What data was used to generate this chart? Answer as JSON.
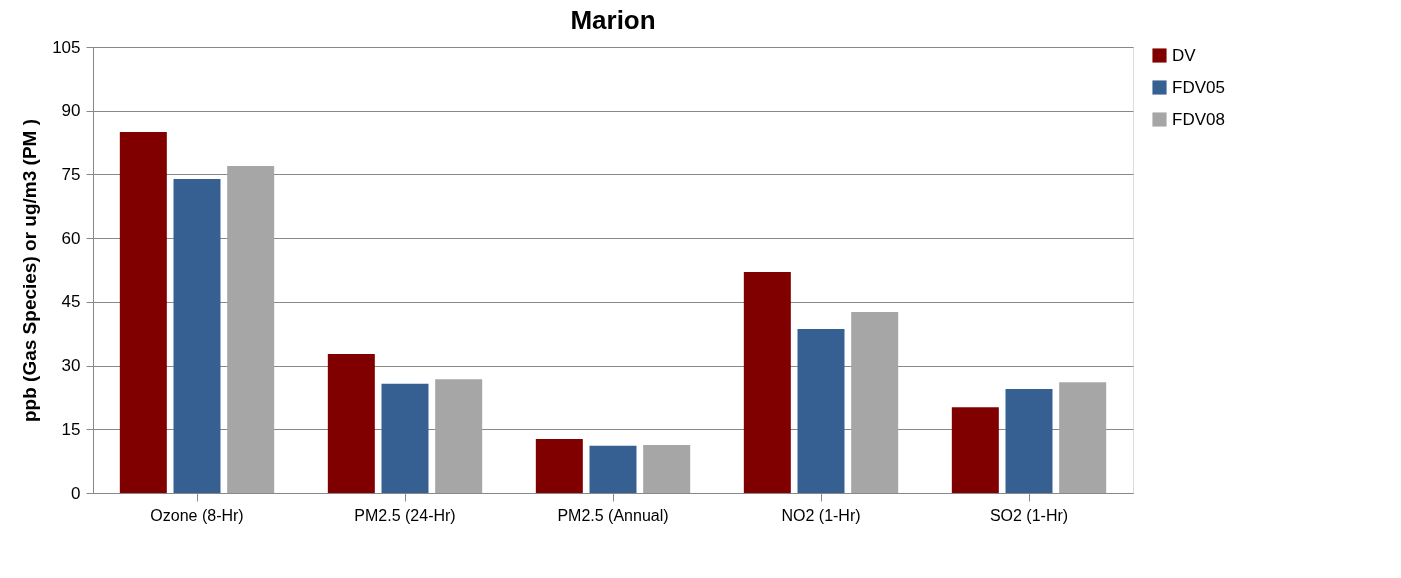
{
  "chart_data": {
    "type": "bar",
    "title": "Marion",
    "ylabel": "ppb (Gas Species) or ug/m3 (PM )",
    "categories": [
      "Ozone (8-Hr)",
      "PM2.5 (24-Hr)",
      "PM2.5 (Annual)",
      "NO2 (1-Hr)",
      "SO2 (1-Hr)"
    ],
    "series": [
      {
        "name": "DV",
        "color": "#800000",
        "values": [
          85,
          32.7,
          12.7,
          52,
          20.2
        ]
      },
      {
        "name": "FDV05",
        "color": "#376092",
        "values": [
          73.9,
          25.7,
          11.1,
          38.6,
          24.5
        ]
      },
      {
        "name": "FDV08",
        "color": "#a6a6a6",
        "values": [
          77,
          26.8,
          11.3,
          42.6,
          26.1
        ]
      }
    ],
    "ylim": [
      0,
      105
    ],
    "yticks": [
      0,
      15,
      30,
      45,
      60,
      75,
      90,
      105
    ],
    "grid": "y",
    "legend": "right"
  }
}
